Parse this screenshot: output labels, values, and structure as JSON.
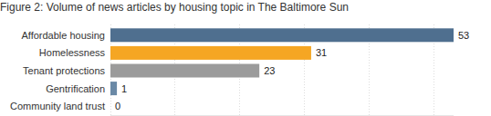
{
  "chart_data": {
    "type": "bar",
    "orientation": "horizontal",
    "title": "Figure 2: Volume of news articles by housing topic in The Baltimore Sun",
    "categories": [
      "Affordable housing",
      "Homelessness",
      "Tenant protections",
      "Gentrification",
      "Community land trust"
    ],
    "values": [
      53,
      31,
      23,
      1,
      0
    ],
    "colors": [
      "#4f6f8f",
      "#f5a623",
      "#9b9b9b",
      "#6a89a6",
      "#4f6f8f"
    ],
    "xlim": [
      0,
      53
    ],
    "xticks": [
      0,
      10,
      20,
      30,
      40,
      50
    ],
    "grid": true,
    "data_labels": true,
    "tick_labels": "y"
  }
}
